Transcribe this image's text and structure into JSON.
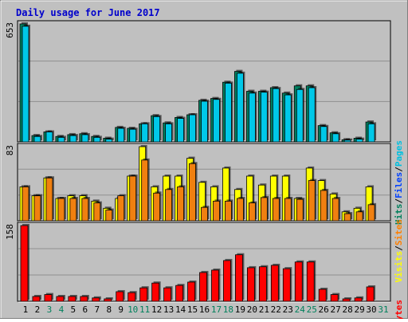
{
  "chart_data": [
    {
      "type": "bar",
      "panel": "hits-files-pages",
      "title": "Daily usage for June 2017",
      "max_label": "653",
      "ymax": 653,
      "categories": [
        "1",
        "2",
        "3",
        "4",
        "5",
        "6",
        "7",
        "8",
        "9",
        "10",
        "11",
        "12",
        "13",
        "14",
        "15",
        "16",
        "17",
        "18",
        "19",
        "20",
        "21",
        "22",
        "23",
        "24",
        "25",
        "26",
        "27",
        "28",
        "29",
        "30",
        "31"
      ],
      "weekend_days": [
        "3",
        "4",
        "10",
        "11",
        "17",
        "18",
        "24",
        "25",
        "31"
      ],
      "legend": [
        {
          "label": "Pages",
          "color": "#00c0e0"
        },
        {
          "label": "Files",
          "color": "#0040ff"
        },
        {
          "label": "Hits",
          "color": "#00805c"
        }
      ],
      "series": [
        {
          "name": "Hits",
          "color": "#008060",
          "values": [
            653,
            35,
            55,
            30,
            40,
            45,
            30,
            20,
            80,
            75,
            100,
            145,
            105,
            135,
            150,
            230,
            240,
            330,
            390,
            280,
            280,
            300,
            270,
            310,
            310,
            90,
            50,
            12,
            20,
            110,
            0
          ]
        },
        {
          "name": "Pages",
          "color": "#00c8e8",
          "values": [
            640,
            30,
            55,
            25,
            35,
            40,
            25,
            15,
            75,
            70,
            100,
            140,
            100,
            130,
            150,
            225,
            235,
            325,
            380,
            270,
            275,
            295,
            260,
            290,
            300,
            85,
            45,
            10,
            15,
            100,
            0
          ]
        }
      ]
    },
    {
      "type": "bar",
      "panel": "visits-sites",
      "max_label": "83",
      "ymax": 83,
      "legend": [
        {
          "label": "Sites",
          "color": "#ff8000"
        },
        {
          "label": "Visits",
          "color": "#ffff00"
        }
      ],
      "series": [
        {
          "name": "Visits",
          "color": "#ffff00",
          "values": [
            38,
            28,
            48,
            25,
            28,
            28,
            22,
            14,
            25,
            50,
            83,
            38,
            50,
            50,
            70,
            43,
            38,
            59,
            35,
            50,
            40,
            50,
            50,
            25,
            59,
            45,
            30,
            10,
            14,
            38,
            0
          ]
        },
        {
          "name": "Sites",
          "color": "#f08010",
          "values": [
            38,
            28,
            48,
            25,
            25,
            25,
            20,
            12,
            28,
            50,
            68,
            31,
            35,
            38,
            64,
            15,
            22,
            22,
            25,
            20,
            26,
            25,
            25,
            24,
            45,
            34,
            25,
            8,
            10,
            18,
            0
          ]
        }
      ]
    },
    {
      "type": "bar",
      "panel": "kbytes",
      "max_label": "158",
      "ymax": 158,
      "legend": [
        {
          "label": "KBytes",
          "color": "#ff0000"
        }
      ],
      "series": [
        {
          "name": "KBytes",
          "color": "#ff0000",
          "values": [
            158,
            10,
            14,
            10,
            10,
            10,
            7,
            5,
            20,
            18,
            28,
            38,
            28,
            33,
            40,
            60,
            65,
            85,
            97,
            70,
            72,
            75,
            68,
            82,
            82,
            25,
            14,
            5,
            7,
            30,
            0
          ]
        }
      ]
    }
  ],
  "colors": {
    "background": "#c0c0c0",
    "frame_bg": "#ffffff",
    "title": "#0000cc",
    "grid": "#8f8f8f",
    "axis_text": "#000000",
    "weekend_text": "#00805c"
  }
}
